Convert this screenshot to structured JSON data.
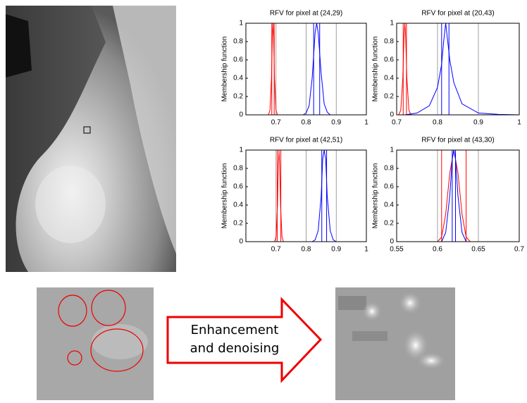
{
  "chart_data": [
    {
      "type": "line",
      "title": "RFV for pixel at (24,29)",
      "y_label": "Membership function",
      "xlim": [
        0.6,
        1
      ],
      "xticks": [
        0.7,
        0.8,
        0.9,
        1
      ],
      "ylim": [
        0,
        1
      ],
      "yticks": [
        0,
        0.2,
        0.4,
        0.6,
        0.8,
        1
      ],
      "grid": true,
      "series": [
        {
          "color": "#ff0000",
          "x": [
            0.675,
            0.68,
            0.685,
            0.688,
            0.69,
            0.692,
            0.695,
            0.7,
            0.705
          ],
          "values": [
            0,
            0.05,
            0.4,
            0.85,
            1,
            0.85,
            0.4,
            0.05,
            0
          ],
          "vlines": [
            0.686,
            0.694
          ]
        },
        {
          "color": "#0000ff",
          "x": [
            0.79,
            0.8,
            0.81,
            0.82,
            0.83,
            0.835,
            0.84,
            0.85,
            0.86,
            0.87,
            0.88
          ],
          "values": [
            0,
            0.02,
            0.1,
            0.4,
            0.9,
            1,
            0.9,
            0.45,
            0.12,
            0.03,
            0
          ],
          "vlines": [
            0.825,
            0.845
          ]
        }
      ]
    },
    {
      "type": "line",
      "title": "RFV for pixel at (20,43)",
      "y_label": "Membership function",
      "xlim": [
        0.7,
        1
      ],
      "xticks": [
        0.7,
        0.8,
        0.9,
        1
      ],
      "ylim": [
        0,
        1
      ],
      "yticks": [
        0,
        0.2,
        0.4,
        0.6,
        0.8,
        1
      ],
      "grid": true,
      "series": [
        {
          "color": "#ff0000",
          "x": [
            0.705,
            0.71,
            0.715,
            0.718,
            0.72,
            0.722,
            0.725,
            0.73,
            0.735
          ],
          "values": [
            0,
            0.05,
            0.4,
            0.85,
            1,
            0.85,
            0.4,
            0.05,
            0
          ],
          "vlines": [
            0.716,
            0.724
          ]
        },
        {
          "color": "#0000ff",
          "x": [
            0.72,
            0.75,
            0.78,
            0.8,
            0.81,
            0.815,
            0.82,
            0.825,
            0.83,
            0.84,
            0.86,
            0.9,
            0.95,
            1
          ],
          "values": [
            0,
            0.02,
            0.1,
            0.3,
            0.55,
            0.8,
            1,
            0.8,
            0.6,
            0.35,
            0.12,
            0.02,
            0.005,
            0
          ],
          "vlines": [
            0.81,
            0.828
          ]
        }
      ]
    },
    {
      "type": "line",
      "title": "RFV for pixel at (42,51)",
      "y_label": "Membership function",
      "xlim": [
        0.6,
        1
      ],
      "xticks": [
        0.7,
        0.8,
        0.9,
        1
      ],
      "ylim": [
        0,
        1
      ],
      "yticks": [
        0,
        0.2,
        0.4,
        0.6,
        0.8,
        1
      ],
      "grid": true,
      "series": [
        {
          "color": "#ff0000",
          "x": [
            0.695,
            0.7,
            0.705,
            0.708,
            0.71,
            0.712,
            0.715,
            0.72,
            0.725
          ],
          "values": [
            0,
            0.05,
            0.4,
            0.85,
            1,
            0.85,
            0.4,
            0.05,
            0
          ],
          "vlines": [
            0.704,
            0.716
          ]
        },
        {
          "color": "#0000ff",
          "x": [
            0.82,
            0.83,
            0.84,
            0.85,
            0.855,
            0.86,
            0.865,
            0.87,
            0.88,
            0.89,
            0.9
          ],
          "values": [
            0,
            0.02,
            0.12,
            0.5,
            0.9,
            1,
            0.9,
            0.5,
            0.12,
            0.02,
            0
          ],
          "vlines": [
            0.852,
            0.868
          ]
        }
      ]
    },
    {
      "type": "line",
      "title": "RFV for pixel at (43,30)",
      "y_label": "Membership function",
      "xlim": [
        0.55,
        0.7
      ],
      "xticks": [
        0.55,
        0.6,
        0.65,
        0.7
      ],
      "ylim": [
        0,
        1
      ],
      "yticks": [
        0,
        0.2,
        0.4,
        0.6,
        0.8,
        1
      ],
      "grid": true,
      "series": [
        {
          "color": "#ff0000",
          "x": [
            0.6,
            0.605,
            0.61,
            0.615,
            0.62,
            0.625,
            0.63,
            0.635,
            0.64
          ],
          "values": [
            0,
            0.05,
            0.3,
            0.75,
            1,
            0.75,
            0.3,
            0.05,
            0
          ],
          "vlines": [
            0.605,
            0.635
          ]
        },
        {
          "color": "#0000ff",
          "x": [
            0.605,
            0.61,
            0.615,
            0.618,
            0.62,
            0.622,
            0.625,
            0.63,
            0.635
          ],
          "values": [
            0,
            0.1,
            0.5,
            0.9,
            1,
            0.9,
            0.5,
            0.1,
            0
          ],
          "vlines": [
            0.618,
            0.622
          ]
        }
      ]
    }
  ],
  "arrow_label": [
    "Enhancement",
    "and denoising"
  ]
}
